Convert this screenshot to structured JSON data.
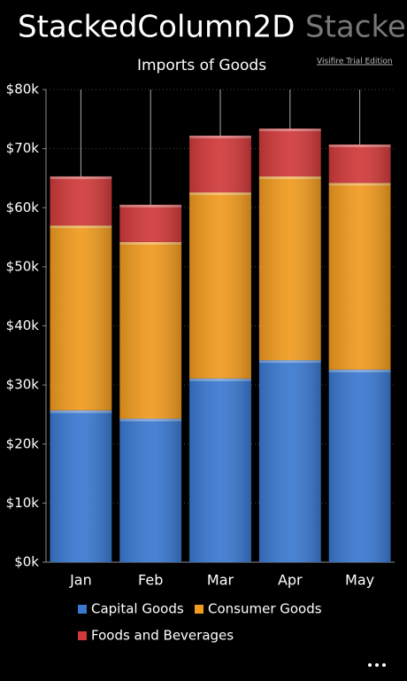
{
  "app": {
    "pivot_items": [
      "StackedColumn2D",
      "Stacked"
    ],
    "watermark": "Visifire Trial Edition"
  },
  "chart_data": {
    "type": "stacked_bar",
    "title": "Imports of Goods",
    "categories": [
      "Jan",
      "Feb",
      "Mar",
      "Apr",
      "May"
    ],
    "series": [
      {
        "name": "Capital Goods",
        "color": "#3a78d0",
        "values": [
          25700,
          24300,
          31100,
          34200,
          32600
        ]
      },
      {
        "name": "Consumer Goods",
        "color": "#f09a1e",
        "values": [
          31300,
          29900,
          31500,
          31100,
          31600
        ]
      },
      {
        "name": "Foods and Beverages",
        "color": "#d0393a",
        "values": [
          8300,
          6300,
          9600,
          8100,
          6500
        ]
      }
    ],
    "ylim": [
      0,
      80000
    ],
    "yticks": [
      {
        "value": 0,
        "label": "$0k"
      },
      {
        "value": 10000,
        "label": "$10k"
      },
      {
        "value": 20000,
        "label": "$20k"
      },
      {
        "value": 30000,
        "label": "$30k"
      },
      {
        "value": 40000,
        "label": "$40k"
      },
      {
        "value": 50000,
        "label": "$50k"
      },
      {
        "value": 60000,
        "label": "$60k"
      },
      {
        "value": 70000,
        "label": "$70k"
      },
      {
        "value": 80000,
        "label": "$80k"
      }
    ],
    "grid": true,
    "legend": "bottom"
  }
}
